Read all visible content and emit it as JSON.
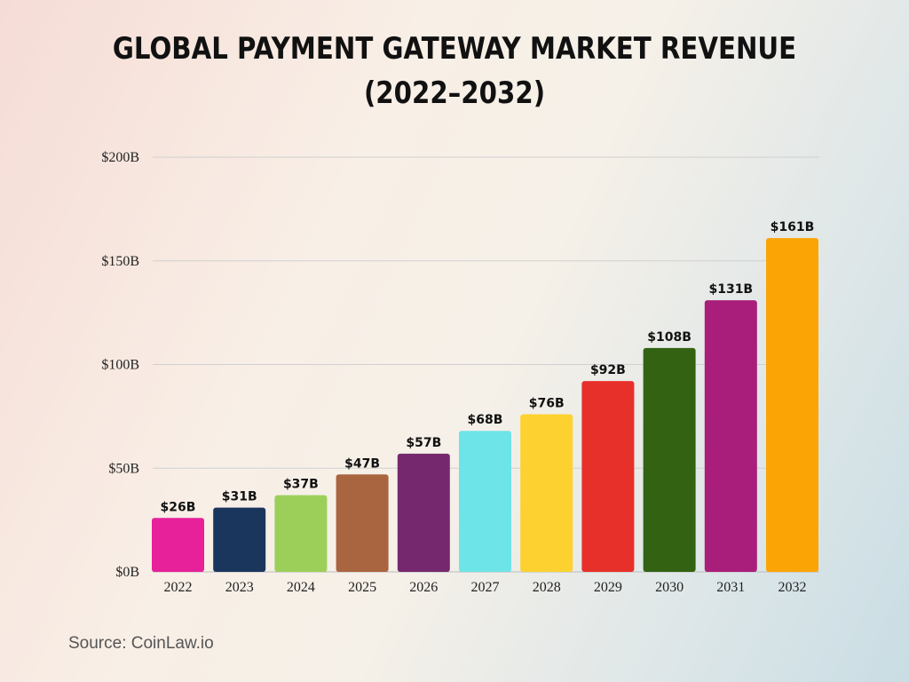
{
  "chart_data": {
    "type": "bar",
    "title": "Global Payment Gateway Market Revenue (2022–2032)",
    "xlabel": "",
    "ylabel": "",
    "categories": [
      "2022",
      "2023",
      "2024",
      "2025",
      "2026",
      "2027",
      "2028",
      "2029",
      "2030",
      "2031",
      "2032"
    ],
    "values": [
      26,
      31,
      37,
      47,
      57,
      68,
      76,
      92,
      108,
      131,
      161
    ],
    "data_labels": [
      "$26B",
      "$31B",
      "$37B",
      "$47B",
      "$57B",
      "$68B",
      "$76B",
      "$92B",
      "$108B",
      "$131B",
      "$161B"
    ],
    "colors": [
      "#e6219a",
      "#1b365d",
      "#9ccf5a",
      "#a9653f",
      "#76286e",
      "#6de4e8",
      "#fdd230",
      "#e8302a",
      "#336213",
      "#a91e7a",
      "#fba406"
    ],
    "ylim": [
      0,
      200
    ],
    "yticks": [
      0,
      50,
      100,
      150,
      200
    ],
    "ytick_labels": [
      "$0B",
      "$50B",
      "$100B",
      "$150B",
      "$200B"
    ],
    "grid": true,
    "legend": "none"
  },
  "source": "Source: CoinLaw.io"
}
